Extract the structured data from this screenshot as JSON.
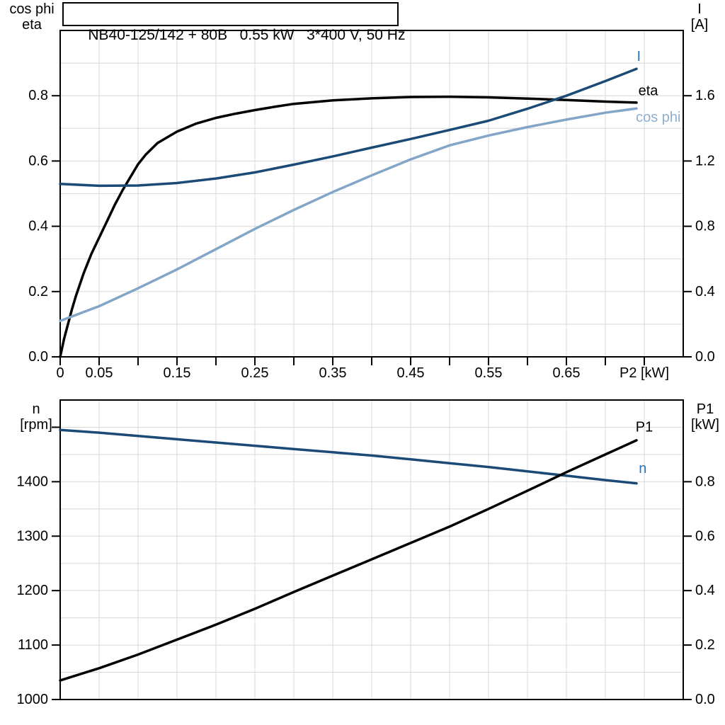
{
  "title_box": {
    "text": "NB40-125/142 + 80B   0.55 kW   3*400 V, 50 Hz"
  },
  "colors": {
    "navy": "#1A4A75",
    "light_blue": "#82A5C8",
    "label_blue": "#2E74B5",
    "cos_phi_label": "#8FAECE",
    "grid": "#D8D8D8",
    "axis": "#000000",
    "background": "#FFFFFF"
  },
  "chart_data": [
    {
      "id": "top",
      "type": "line",
      "title": "NB40-125/142 + 80B   0.55 kW   3*400 V, 50 Hz",
      "x_axis": {
        "min": 0,
        "max": 0.8,
        "grid_step": 0.05,
        "tick_step": 0.05,
        "last_tick": 0.75,
        "labels": [
          {
            "x": 0,
            "text": "0"
          },
          {
            "x": 0.05,
            "text": "0.05"
          },
          {
            "x": 0.15,
            "text": "0.15"
          },
          {
            "x": 0.25,
            "text": "0.25"
          },
          {
            "x": 0.35,
            "text": "0.35"
          },
          {
            "x": 0.45,
            "text": "0.45"
          },
          {
            "x": 0.55,
            "text": "0.55"
          },
          {
            "x": 0.65,
            "text": "0.65"
          },
          {
            "x": 0.75,
            "text": "P2 [kW]"
          }
        ]
      },
      "left_axis": {
        "title_lines": [
          "cos phi",
          "eta"
        ],
        "min": 0,
        "max": 1.0,
        "grid_step": 0.1,
        "ticks": [
          {
            "v": 0.0,
            "label": "0.0"
          },
          {
            "v": 0.2,
            "label": "0.2"
          },
          {
            "v": 0.4,
            "label": "0.4"
          },
          {
            "v": 0.6,
            "label": "0.6"
          },
          {
            "v": 0.8,
            "label": "0.8"
          }
        ]
      },
      "right_axis": {
        "title_lines": [
          "I",
          "[A]"
        ],
        "min": 0,
        "max": 2.0,
        "ticks": [
          {
            "v": 0.0,
            "label": "0.0"
          },
          {
            "v": 0.4,
            "label": "0.4"
          },
          {
            "v": 0.8,
            "label": "0.8"
          },
          {
            "v": 1.2,
            "label": "1.2"
          },
          {
            "v": 1.6,
            "label": "1.6"
          }
        ]
      },
      "series": [
        {
          "name": "eta",
          "axis": "left",
          "color": "#000000",
          "points": [
            [
              0,
              0
            ],
            [
              0.005,
              0.055
            ],
            [
              0.01,
              0.1
            ],
            [
              0.015,
              0.145
            ],
            [
              0.02,
              0.185
            ],
            [
              0.03,
              0.255
            ],
            [
              0.04,
              0.315
            ],
            [
              0.05,
              0.365
            ],
            [
              0.06,
              0.415
            ],
            [
              0.07,
              0.465
            ],
            [
              0.08,
              0.51
            ],
            [
              0.09,
              0.55
            ],
            [
              0.1,
              0.59
            ],
            [
              0.11,
              0.62
            ],
            [
              0.125,
              0.655
            ],
            [
              0.15,
              0.69
            ],
            [
              0.175,
              0.715
            ],
            [
              0.2,
              0.732
            ],
            [
              0.225,
              0.745
            ],
            [
              0.25,
              0.756
            ],
            [
              0.275,
              0.766
            ],
            [
              0.3,
              0.775
            ],
            [
              0.35,
              0.786
            ],
            [
              0.4,
              0.792
            ],
            [
              0.45,
              0.796
            ],
            [
              0.5,
              0.797
            ],
            [
              0.55,
              0.795
            ],
            [
              0.6,
              0.791
            ],
            [
              0.65,
              0.787
            ],
            [
              0.7,
              0.782
            ],
            [
              0.74,
              0.779
            ]
          ]
        },
        {
          "name": "I",
          "axis": "right",
          "color": "#1A4A75",
          "points": [
            [
              0,
              1.06
            ],
            [
              0.05,
              1.048
            ],
            [
              0.1,
              1.05
            ],
            [
              0.15,
              1.065
            ],
            [
              0.2,
              1.093
            ],
            [
              0.25,
              1.13
            ],
            [
              0.3,
              1.178
            ],
            [
              0.35,
              1.228
            ],
            [
              0.4,
              1.282
            ],
            [
              0.45,
              1.335
            ],
            [
              0.5,
              1.39
            ],
            [
              0.55,
              1.447
            ],
            [
              0.6,
              1.52
            ],
            [
              0.65,
              1.6
            ],
            [
              0.7,
              1.69
            ],
            [
              0.74,
              1.765
            ]
          ]
        },
        {
          "name": "cos phi",
          "axis": "left",
          "color": "#82A5C8",
          "points": [
            [
              0,
              0.11
            ],
            [
              0.05,
              0.155
            ],
            [
              0.1,
              0.21
            ],
            [
              0.15,
              0.268
            ],
            [
              0.2,
              0.33
            ],
            [
              0.25,
              0.392
            ],
            [
              0.3,
              0.45
            ],
            [
              0.35,
              0.505
            ],
            [
              0.4,
              0.556
            ],
            [
              0.45,
              0.605
            ],
            [
              0.5,
              0.648
            ],
            [
              0.55,
              0.678
            ],
            [
              0.6,
              0.704
            ],
            [
              0.65,
              0.727
            ],
            [
              0.7,
              0.748
            ],
            [
              0.74,
              0.761
            ]
          ]
        }
      ],
      "curve_labels": [
        {
          "text": "I",
          "axis": "right",
          "x": 0.743,
          "y": 1.84,
          "color": "#2E74B5"
        },
        {
          "text": "eta",
          "axis": "left",
          "x": 0.755,
          "y": 0.815,
          "color": "#000000"
        },
        {
          "text": "cos phi",
          "axis": "left",
          "x": 0.768,
          "y": 0.733,
          "color": "#8FAECE"
        }
      ]
    },
    {
      "id": "bottom",
      "type": "line",
      "x_axis": {
        "min": 0,
        "max": 0.8,
        "grid_step": 0.05,
        "labels": []
      },
      "left_axis": {
        "title_lines": [
          "n",
          "[rpm]"
        ],
        "min": 1000,
        "max": 1550,
        "grid_step": 50,
        "ticks": [
          {
            "v": 1000,
            "label": "1000"
          },
          {
            "v": 1100,
            "label": "1100"
          },
          {
            "v": 1200,
            "label": "1200"
          },
          {
            "v": 1300,
            "label": "1300"
          },
          {
            "v": 1400,
            "label": "1400"
          },
          {
            "v": 1500,
            "label": ""
          }
        ]
      },
      "right_axis": {
        "title_lines": [
          "P1",
          "[kW]"
        ],
        "min": 0,
        "max": 1.1,
        "ticks": [
          {
            "v": 0.0,
            "label": "0.0"
          },
          {
            "v": 0.2,
            "label": "0.2"
          },
          {
            "v": 0.4,
            "label": "0.4"
          },
          {
            "v": 0.6,
            "label": "0.6"
          },
          {
            "v": 0.8,
            "label": "0.8"
          }
        ]
      },
      "series": [
        {
          "name": "n",
          "axis": "left",
          "color": "#1A4A75",
          "points": [
            [
              0,
              1495
            ],
            [
              0.05,
              1490
            ],
            [
              0.1,
              1484
            ],
            [
              0.15,
              1478
            ],
            [
              0.2,
              1472
            ],
            [
              0.25,
              1466
            ],
            [
              0.3,
              1460
            ],
            [
              0.35,
              1454
            ],
            [
              0.4,
              1448
            ],
            [
              0.45,
              1441
            ],
            [
              0.5,
              1434
            ],
            [
              0.55,
              1427
            ],
            [
              0.6,
              1419
            ],
            [
              0.65,
              1411
            ],
            [
              0.7,
              1403
            ],
            [
              0.74,
              1397
            ]
          ]
        },
        {
          "name": "P1",
          "axis": "right",
          "color": "#000000",
          "points": [
            [
              0,
              0.07
            ],
            [
              0.05,
              0.115
            ],
            [
              0.1,
              0.165
            ],
            [
              0.15,
              0.22
            ],
            [
              0.2,
              0.275
            ],
            [
              0.25,
              0.333
            ],
            [
              0.3,
              0.395
            ],
            [
              0.35,
              0.455
            ],
            [
              0.4,
              0.515
            ],
            [
              0.45,
              0.575
            ],
            [
              0.5,
              0.635
            ],
            [
              0.55,
              0.7
            ],
            [
              0.6,
              0.767
            ],
            [
              0.65,
              0.835
            ],
            [
              0.7,
              0.9
            ],
            [
              0.74,
              0.952
            ]
          ]
        }
      ],
      "curve_labels": [
        {
          "text": "P1",
          "axis": "right",
          "x": 0.75,
          "y": 1.0,
          "color": "#000000"
        },
        {
          "text": "n",
          "axis": "left",
          "x": 0.748,
          "y": 1424,
          "color": "#2E74B5"
        }
      ]
    }
  ]
}
